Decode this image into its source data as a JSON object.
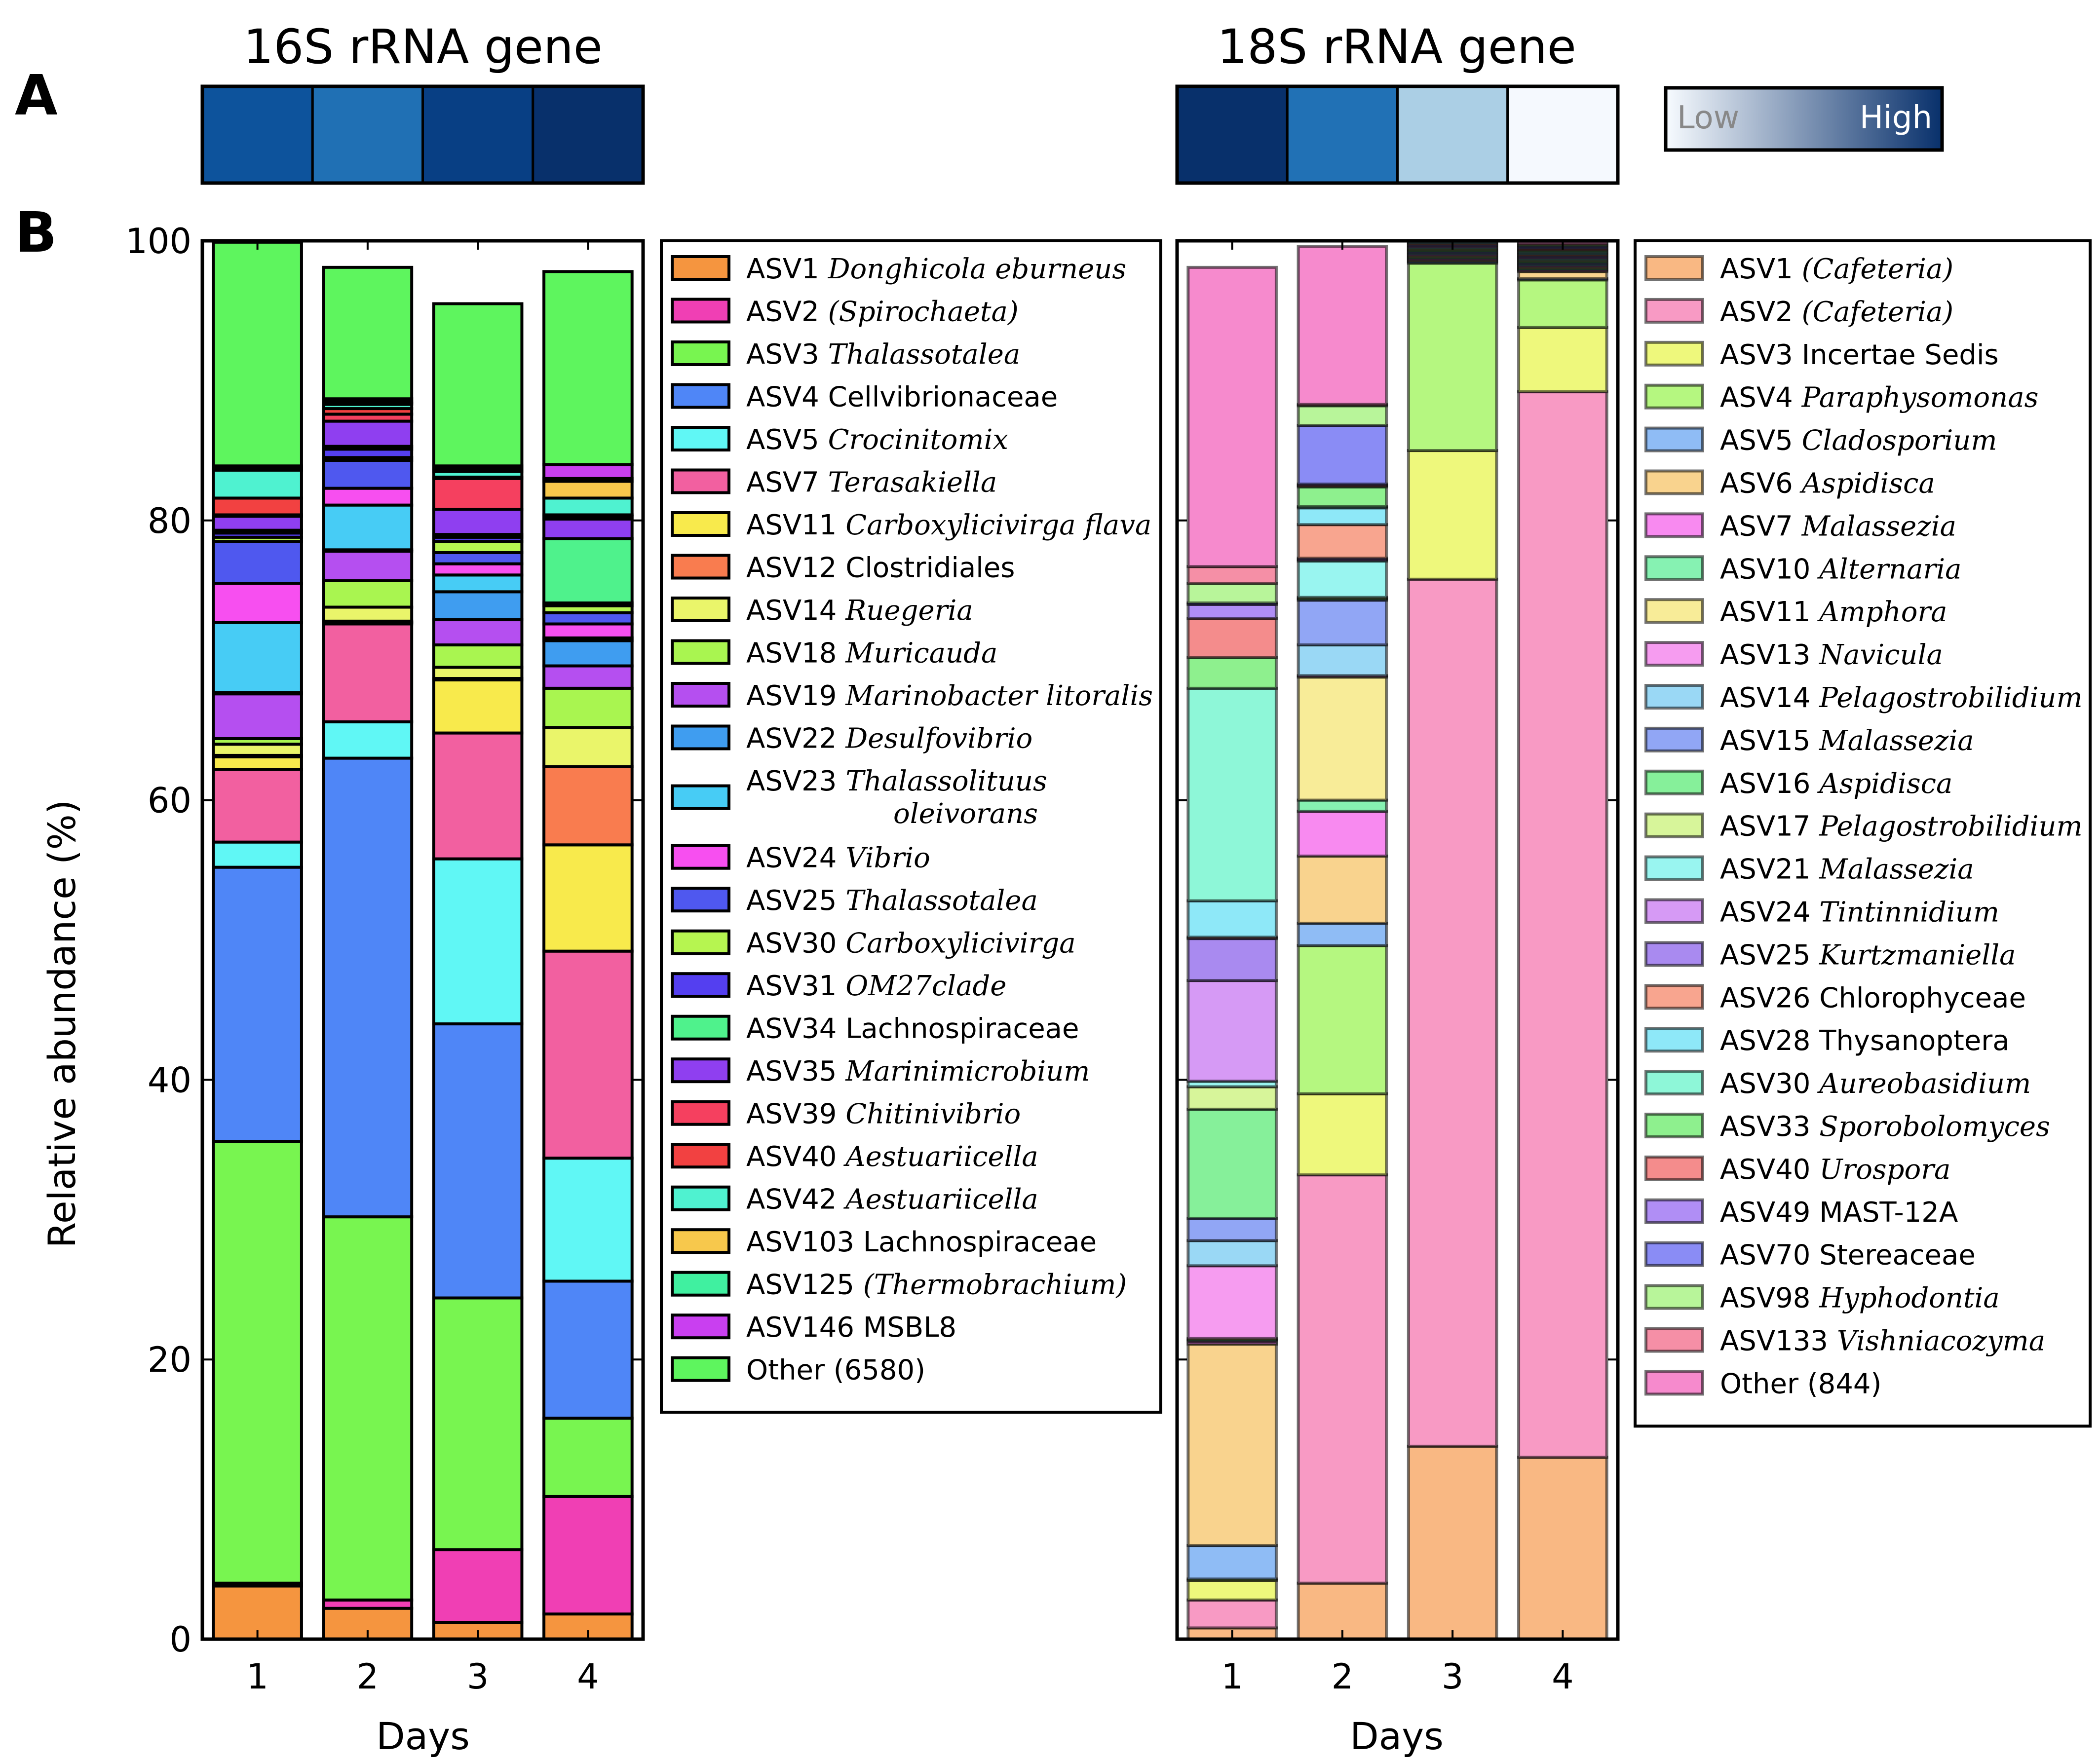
{
  "panel_labels": {
    "a": "A",
    "b": "B"
  },
  "heat_strips": [
    {
      "title": "16S rRNA gene",
      "colors": [
        "#0d539c",
        "#2070b4",
        "#083f84",
        "#08306b"
      ]
    },
    {
      "title": "18S rRNA gene",
      "colors": [
        "#08306b",
        "#2171b5",
        "#abcfe5",
        "#f5f9fe"
      ]
    }
  ],
  "colorscale": {
    "low": "Low",
    "high": "High",
    "low_color": "#f7fbff",
    "high_color": "#08306b"
  },
  "chart_data": [
    {
      "type": "bar",
      "stacked": true,
      "title": "16S rRNA gene",
      "xlabel": "Days",
      "ylabel": "Relative abundance (%)",
      "categories": [
        "1",
        "2",
        "3",
        "4"
      ],
      "ylim": [
        0,
        100
      ],
      "yticks": [
        "0",
        "20",
        "40",
        "60",
        "80",
        "100"
      ],
      "legend_position": "right",
      "series": [
        {
          "name": "ASV1",
          "taxon": "Donghicola eburneus",
          "italic": true,
          "color": "#f5953f",
          "values": [
            3.8,
            2.2,
            1.2,
            1.8
          ]
        },
        {
          "name": "ASV2",
          "taxon": "(Spirochaeta)",
          "italic": true,
          "color": "#f03fb4",
          "values": [
            0.2,
            0.6,
            5.2,
            8.4
          ]
        },
        {
          "name": "ASV3",
          "taxon": "Thalassotalea",
          "italic": true,
          "color": "#78f550",
          "values": [
            31.6,
            27.4,
            18.0,
            5.6
          ]
        },
        {
          "name": "ASV4",
          "taxon": "Cellvibrionaceae",
          "italic": false,
          "color": "#4f86f7",
          "values": [
            19.6,
            32.8,
            19.6,
            9.8
          ]
        },
        {
          "name": "ASV5",
          "taxon": "Crocinitomix",
          "italic": true,
          "color": "#60f7f5",
          "values": [
            1.8,
            2.6,
            11.8,
            8.8
          ]
        },
        {
          "name": "ASV7",
          "taxon": "Terasakiella",
          "italic": true,
          "color": "#f260a0",
          "values": [
            5.2,
            7.0,
            9.0,
            14.8
          ]
        },
        {
          "name": "ASV11",
          "taxon": "Carboxylicivirga flava",
          "italic": true,
          "color": "#f8ea4c",
          "values": [
            0.9,
            0.1,
            3.8,
            7.6
          ]
        },
        {
          "name": "ASV12",
          "taxon": "Clostridiales",
          "italic": false,
          "color": "#f97c4f",
          "values": [
            0.1,
            0.1,
            0.1,
            5.6
          ]
        },
        {
          "name": "ASV14",
          "taxon": "Ruegeria",
          "italic": true,
          "color": "#eaf56a",
          "values": [
            0.8,
            1.0,
            0.8,
            2.8
          ]
        },
        {
          "name": "ASV18",
          "taxon": "Muricauda",
          "italic": true,
          "color": "#a9f550",
          "values": [
            0.4,
            1.9,
            1.6,
            2.8
          ]
        },
        {
          "name": "ASV19",
          "taxon": "Marinobacter litoralis",
          "italic": true,
          "color": "#b54ff0",
          "values": [
            3.2,
            2.1,
            1.8,
            1.6
          ]
        },
        {
          "name": "ASV22",
          "taxon": "Desulfovibrio",
          "italic": true,
          "color": "#3f9df0",
          "values": [
            0.1,
            0.1,
            2.0,
            1.8
          ]
        },
        {
          "name": "ASV23",
          "taxon": "Thalassolituus oleivorans",
          "italic": true,
          "color": "#47ccf5",
          "values": [
            5.0,
            3.2,
            1.2,
            0.2
          ]
        },
        {
          "name": "ASV24",
          "taxon": "Vibrio",
          "italic": true,
          "color": "#f74ff0",
          "values": [
            2.8,
            1.2,
            0.8,
            1.0
          ]
        },
        {
          "name": "ASV25",
          "taxon": "Thalassotalea",
          "italic": true,
          "color": "#4f58ef",
          "values": [
            3.0,
            2.0,
            0.8,
            0.8
          ]
        },
        {
          "name": "ASV30",
          "taxon": "Carboxylicivirga",
          "italic": true,
          "color": "#b6f550",
          "values": [
            0.3,
            0.2,
            0.8,
            0.5
          ]
        },
        {
          "name": "ASV31",
          "taxon": "OM27clade",
          "italic": true,
          "color": "#543ff0",
          "values": [
            0.3,
            0.6,
            0.3,
            0.2
          ]
        },
        {
          "name": "ASV34",
          "taxon": "Lachnospiraceae",
          "italic": false,
          "color": "#4ff28c",
          "values": [
            0.2,
            0.2,
            0.2,
            4.6
          ]
        },
        {
          "name": "ASV35",
          "taxon": "Marinimicrobium",
          "italic": true,
          "color": "#8f3ff0",
          "values": [
            1.0,
            1.8,
            1.8,
            1.4
          ]
        },
        {
          "name": "ASV39",
          "taxon": "Chitinivibrio",
          "italic": true,
          "color": "#f5405f",
          "values": [
            0.1,
            0.5,
            2.2,
            0.2
          ]
        },
        {
          "name": "ASV40",
          "taxon": "Aestuariicella",
          "italic": true,
          "color": "#f24141",
          "values": [
            1.2,
            0.4,
            0.1,
            0.1
          ]
        },
        {
          "name": "ASV42",
          "taxon": "Aestuariicella",
          "italic": true,
          "color": "#4ff2d0",
          "values": [
            2.0,
            0.3,
            0.4,
            1.2
          ]
        },
        {
          "name": "ASV103",
          "taxon": "Lachnospiraceae",
          "italic": false,
          "color": "#f7c84c",
          "values": [
            0.1,
            0.1,
            0.1,
            1.2
          ]
        },
        {
          "name": "ASV125",
          "taxon": "(Thermobrachium)",
          "italic": true,
          "color": "#40f0a0",
          "values": [
            0.1,
            0.1,
            0.1,
            0.2
          ]
        },
        {
          "name": "ASV146",
          "taxon": "MSBL8",
          "italic": false,
          "color": "#c93ff0",
          "values": [
            0.1,
            0.2,
            0.2,
            1.0
          ]
        },
        {
          "name": "Other (6580)",
          "taxon": "",
          "italic": false,
          "color": "#5ef55e",
          "values": [
            16.0,
            9.4,
            11.6,
            13.8
          ]
        }
      ]
    },
    {
      "type": "bar",
      "stacked": true,
      "title": "18S rRNA gene",
      "xlabel": "Days",
      "categories": [
        "1",
        "2",
        "3",
        "4"
      ],
      "ylim": [
        0,
        100
      ],
      "legend_position": "right",
      "series": [
        {
          "name": "ASV1",
          "taxon": "(Cafeteria)",
          "italic": true,
          "color": "#f9b883",
          "values": [
            0.8,
            4.0,
            13.8,
            13.0
          ]
        },
        {
          "name": "ASV2",
          "taxon": "(Cafeteria)",
          "italic": true,
          "color": "#f89ac4",
          "values": [
            2.0,
            29.2,
            62.0,
            76.2
          ]
        },
        {
          "name": "ASV3",
          "taxon": "Incertae Sedis",
          "italic": false,
          "color": "#eef87c",
          "values": [
            1.4,
            5.8,
            9.2,
            4.6
          ]
        },
        {
          "name": "ASV4",
          "taxon": "Paraphysomonas",
          "italic": true,
          "color": "#b5f780",
          "values": [
            0.1,
            10.6,
            13.4,
            3.4
          ]
        },
        {
          "name": "ASV5",
          "taxon": "Cladosporium",
          "italic": true,
          "color": "#8fbcf5",
          "values": [
            2.4,
            1.6,
            0.1,
            0.1
          ]
        },
        {
          "name": "ASV6",
          "taxon": "Aspidisca",
          "italic": true,
          "color": "#f9d38e",
          "values": [
            14.4,
            4.8,
            0.1,
            0.5
          ]
        },
        {
          "name": "ASV7",
          "taxon": "Malassezia",
          "italic": true,
          "color": "#f88af0",
          "values": [
            0.2,
            3.2,
            0.1,
            0.1
          ]
        },
        {
          "name": "ASV10",
          "taxon": "Alternaria",
          "italic": true,
          "color": "#86f2b2",
          "values": [
            0.1,
            0.8,
            0.1,
            0.1
          ]
        },
        {
          "name": "ASV11",
          "taxon": "Amphora",
          "italic": true,
          "color": "#f8ec98",
          "values": [
            0.1,
            8.8,
            0.1,
            0.1
          ]
        },
        {
          "name": "ASV13",
          "taxon": "Navicula",
          "italic": true,
          "color": "#f69cf0",
          "values": [
            5.2,
            0.1,
            0.1,
            0.1
          ]
        },
        {
          "name": "ASV14",
          "taxon": "Pelagostrobilidium",
          "italic": true,
          "color": "#9ad8f5",
          "values": [
            1.8,
            2.2,
            0.1,
            0.1
          ]
        },
        {
          "name": "ASV15",
          "taxon": "Malassezia",
          "italic": true,
          "color": "#91a6f5",
          "values": [
            1.6,
            3.2,
            0.1,
            0.1
          ]
        },
        {
          "name": "ASV16",
          "taxon": "Aspidisca",
          "italic": true,
          "color": "#86f09a",
          "values": [
            7.8,
            0.1,
            0.1,
            0.1
          ]
        },
        {
          "name": "ASV17",
          "taxon": "Pelagostrobilidium",
          "italic": true,
          "color": "#d7f59a",
          "values": [
            1.6,
            0.1,
            0.1,
            0.1
          ]
        },
        {
          "name": "ASV21",
          "taxon": "Malassezia",
          "italic": true,
          "color": "#99f5f0",
          "values": [
            0.4,
            2.6,
            0.1,
            0.1
          ]
        },
        {
          "name": "ASV24",
          "taxon": "Tintinnidium",
          "italic": true,
          "color": "#d69af5",
          "values": [
            7.2,
            0.1,
            0.1,
            0.1
          ]
        },
        {
          "name": "ASV25",
          "taxon": "Kurtzmaniella",
          "italic": true,
          "color": "#a98af0",
          "values": [
            3.0,
            0.1,
            0.1,
            0.1
          ]
        },
        {
          "name": "ASV26",
          "taxon": "Chlorophyceae",
          "italic": false,
          "color": "#f8a58f",
          "values": [
            0.1,
            2.4,
            0.1,
            0.1
          ]
        },
        {
          "name": "ASV28",
          "taxon": "Thysanoptera",
          "italic": false,
          "color": "#8ee8f8",
          "values": [
            2.6,
            1.2,
            0.1,
            0.1
          ]
        },
        {
          "name": "ASV30",
          "taxon": "Aureobasidium",
          "italic": true,
          "color": "#8ef7d8",
          "values": [
            15.2,
            0.1,
            0.1,
            0.1
          ]
        },
        {
          "name": "ASV33",
          "taxon": "Sporobolomyces",
          "italic": true,
          "color": "#8ef08e",
          "values": [
            2.2,
            1.4,
            0.1,
            0.1
          ]
        },
        {
          "name": "ASV40",
          "taxon": "Urospora",
          "italic": true,
          "color": "#f48c8c",
          "values": [
            2.8,
            0.1,
            0.1,
            0.1
          ]
        },
        {
          "name": "ASV49",
          "taxon": "MAST-12A",
          "italic": false,
          "color": "#b08ef5",
          "values": [
            1.0,
            0.1,
            0.1,
            0.1
          ]
        },
        {
          "name": "ASV70",
          "taxon": "Stereaceae",
          "italic": false,
          "color": "#8a8cf5",
          "values": [
            0.1,
            4.2,
            0.1,
            0.1
          ]
        },
        {
          "name": "ASV98",
          "taxon": "Hyphodontia",
          "italic": true,
          "color": "#b8f59a",
          "values": [
            1.4,
            1.4,
            0.1,
            0.1
          ]
        },
        {
          "name": "ASV133",
          "taxon": "Vishniacozyma",
          "italic": true,
          "color": "#f58fa6",
          "values": [
            1.2,
            0.1,
            0.1,
            0.1
          ]
        },
        {
          "name": "Other (844)",
          "taxon": "",
          "italic": false,
          "color": "#f68acd",
          "values": [
            21.4,
            11.3,
            1.1,
            1.4
          ]
        }
      ]
    }
  ]
}
